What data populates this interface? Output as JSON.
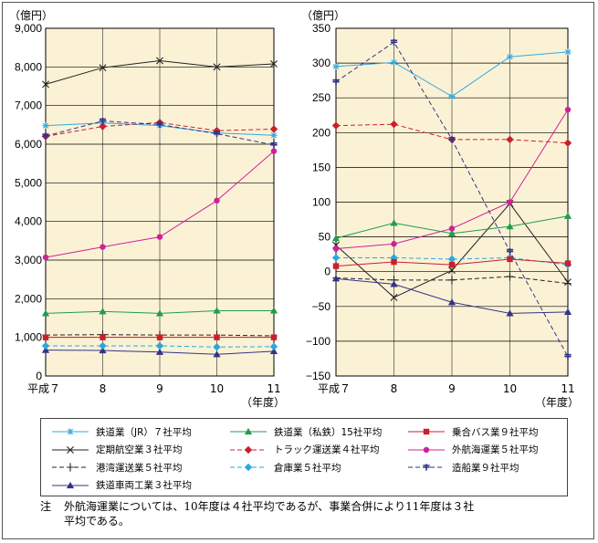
{
  "chart_data": [
    {
      "type": "line",
      "ylabel": "（億円）",
      "xlabel": "（年度）",
      "ylim": [
        0,
        9000
      ],
      "yticks": [
        0,
        1000,
        2000,
        3000,
        4000,
        5000,
        6000,
        7000,
        8000,
        9000
      ],
      "ytick_labels": [
        "0",
        "1,000",
        "2,000",
        "3,000",
        "4,000",
        "5,000",
        "6,000",
        "7,000",
        "8,000",
        "9,000"
      ],
      "categories": [
        "平成７",
        "8",
        "9",
        "10",
        "11"
      ],
      "series": [
        {
          "name": "鉄道業（JR）７社平均",
          "values": [
            6480,
            6550,
            6480,
            6290,
            6230
          ]
        },
        {
          "name": "定期航空業３社平均",
          "values": [
            7550,
            7980,
            8160,
            8000,
            8080
          ]
        },
        {
          "name": "港湾運送業５社平均",
          "values": [
            1060,
            1070,
            1060,
            1060,
            1040
          ]
        },
        {
          "name": "鉄道車両工業３社平均",
          "values": [
            670,
            660,
            620,
            560,
            640
          ]
        },
        {
          "name": "鉄道業（私鉄）15社平均",
          "values": [
            1620,
            1670,
            1620,
            1690,
            1690
          ]
        },
        {
          "name": "トラック運送業４社平均",
          "values": [
            6200,
            6460,
            6560,
            6350,
            6390
          ]
        },
        {
          "name": "倉庫業５社平均",
          "values": [
            780,
            780,
            780,
            750,
            760
          ]
        },
        {
          "name": "乗合バス業９社平均",
          "values": [
            1000,
            1000,
            1000,
            1000,
            1000
          ]
        },
        {
          "name": "外航海運業５社平均",
          "values": [
            3070,
            3340,
            3600,
            4540,
            5820
          ]
        },
        {
          "name": "造船業９社平均",
          "values": [
            6210,
            6600,
            6510,
            6270,
            5980
          ]
        }
      ]
    },
    {
      "type": "line",
      "ylabel": "（億円）",
      "xlabel": "（年度）",
      "ylim": [
        -150,
        350
      ],
      "yticks": [
        -150,
        -100,
        -50,
        0,
        50,
        100,
        150,
        200,
        250,
        300,
        350
      ],
      "ytick_labels": [
        "−150",
        "−100",
        "−50",
        "0",
        "50",
        "100",
        "150",
        "200",
        "250",
        "300",
        "350"
      ],
      "categories": [
        "平成７",
        "8",
        "9",
        "10",
        "11"
      ],
      "series": [
        {
          "name": "鉄道業（JR）７社平均",
          "values": [
            295,
            301,
            252,
            309,
            316
          ]
        },
        {
          "name": "定期航空業３社平均",
          "values": [
            38,
            -37,
            2,
            98,
            -15
          ]
        },
        {
          "name": "港湾運送業５社平均",
          "values": [
            -9,
            -12,
            -12,
            -7,
            -17
          ]
        },
        {
          "name": "鉄道車両工業３社平均",
          "values": [
            -10,
            -18,
            -44,
            -60,
            -58
          ]
        },
        {
          "name": "鉄道業（私鉄）15社平均",
          "values": [
            48,
            70,
            55,
            65,
            80
          ]
        },
        {
          "name": "トラック運送業４社平均",
          "values": [
            210,
            212,
            190,
            190,
            185
          ]
        },
        {
          "name": "倉庫業５社平均",
          "values": [
            20,
            20,
            18,
            20,
            10
          ]
        },
        {
          "name": "乗合バス業９社平均",
          "values": [
            8,
            14,
            10,
            18,
            12
          ]
        },
        {
          "name": "外航海運業５社平均",
          "values": [
            33,
            40,
            62,
            100,
            233
          ]
        },
        {
          "name": "造船業９社平均",
          "values": [
            273,
            330,
            190,
            29,
            -122
          ]
        }
      ]
    }
  ],
  "legend": [
    {
      "label": "鉄道業（JR）７社平均",
      "color": "#33aadd",
      "dash": false,
      "marker": "asterisk"
    },
    {
      "label": "鉄道業（私鉄）15社平均",
      "color": "#1e9e4a",
      "dash": false,
      "marker": "triangle"
    },
    {
      "label": "乗合バス業９社平均",
      "color": "#cc1f2a",
      "dash": false,
      "marker": "square"
    },
    {
      "label": "定期航空業３社平均",
      "color": "#222222",
      "dash": false,
      "marker": "x"
    },
    {
      "label": "トラック運送業４社平均",
      "color": "#cc1f2a",
      "dash": true,
      "marker": "diamond"
    },
    {
      "label": "外航海運業５社平均",
      "color": "#d0209a",
      "dash": false,
      "marker": "circle"
    },
    {
      "label": "港湾運送業５社平均",
      "color": "#222222",
      "dash": true,
      "marker": "plus"
    },
    {
      "label": "倉庫業５社平均",
      "color": "#2aa8e0",
      "dash": true,
      "marker": "diamond"
    },
    {
      "label": "造船業９社平均",
      "color": "#33338a",
      "dash": true,
      "marker": "dash"
    },
    {
      "label": "鉄道車両工業３社平均",
      "color": "#33338a",
      "dash": false,
      "marker": "triangle"
    }
  ],
  "note": {
    "label": "注",
    "line1": "外航海運業については、10年度は４社平均であるが、事業合併により11年度は３社",
    "line2": "平均である。"
  }
}
